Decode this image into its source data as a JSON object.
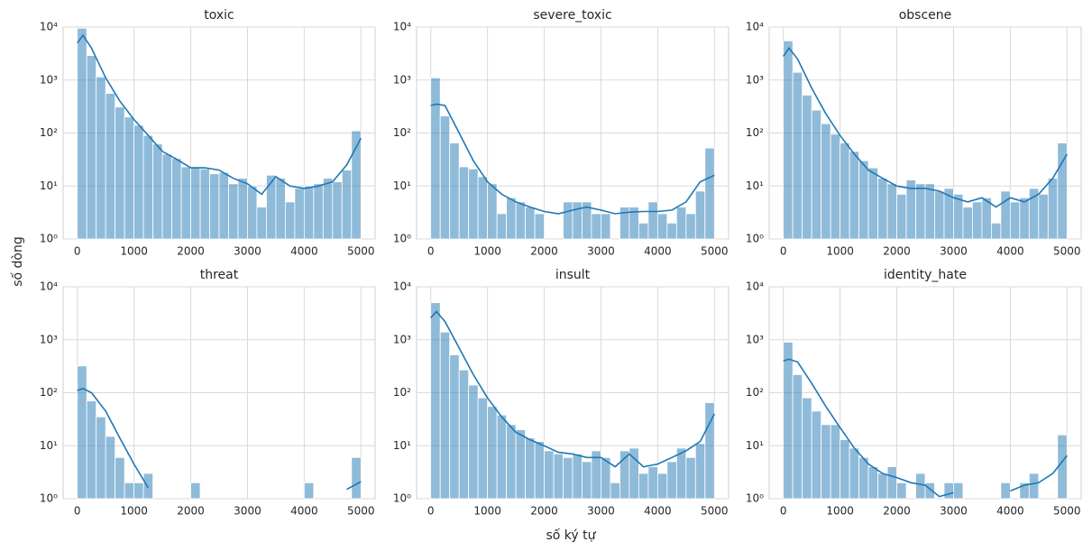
{
  "xlabel": "số ký tự",
  "ylabel": "số dòng",
  "chart_data": [
    {
      "type": "histogram",
      "title": "toxic",
      "color": "#1f77b4",
      "log_y": true,
      "grid": true,
      "bins": [
        0,
        166.7,
        333.3,
        500,
        666.7,
        833.3,
        1000,
        1166.7,
        1333.3,
        1500,
        1666.7,
        1833.3,
        2000,
        2166.7,
        2333.3,
        2500,
        2666.7,
        2833.3,
        3000,
        3166.7,
        3333.3,
        3500,
        3666.7,
        3833.3,
        4000,
        4166.7,
        4333.3,
        4500,
        4666.7,
        4833.3,
        5000
      ],
      "counts": [
        9500,
        2900,
        1150,
        560,
        310,
        200,
        140,
        90,
        62,
        40,
        33,
        23,
        22,
        21,
        17,
        18,
        11,
        14,
        10,
        4,
        16,
        14,
        5,
        9,
        10,
        11,
        14,
        12,
        20,
        110
      ],
      "kde": {
        "x": [
          0,
          100,
          250,
          500,
          750,
          1000,
          1250,
          1500,
          1750,
          2000,
          2250,
          2500,
          2750,
          3000,
          3250,
          3500,
          3750,
          4000,
          4250,
          4500,
          4750,
          5000
        ],
        "values": [
          5000,
          7000,
          4000,
          1100,
          400,
          180,
          90,
          45,
          32,
          22,
          22,
          20,
          14,
          11,
          7,
          15,
          10,
          9,
          10,
          12,
          25,
          80
        ]
      },
      "xlim": [
        -250,
        5250
      ],
      "xticks": [
        0,
        1000,
        2000,
        3000,
        4000,
        5000
      ],
      "ylim": [
        1,
        10000
      ],
      "yticks": [
        {
          "value": 1,
          "label": "10⁰"
        },
        {
          "value": 10,
          "label": "10¹"
        },
        {
          "value": 100,
          "label": "10²"
        },
        {
          "value": 1000,
          "label": "10³"
        },
        {
          "value": 10000,
          "label": "10⁴"
        }
      ]
    },
    {
      "type": "histogram",
      "title": "severe_toxic",
      "color": "#1f77b4",
      "log_y": true,
      "grid": true,
      "bins": [
        0,
        166.7,
        333.3,
        500,
        666.7,
        833.3,
        1000,
        1166.7,
        1333.3,
        1500,
        1666.7,
        1833.3,
        2000,
        2166.7,
        2333.3,
        2500,
        2666.7,
        2833.3,
        3000,
        3166.7,
        3333.3,
        3500,
        3666.7,
        3833.3,
        4000,
        4166.7,
        4333.3,
        4500,
        4666.7,
        4833.3,
        5000
      ],
      "counts": [
        1100,
        210,
        65,
        23,
        21,
        15,
        11,
        3,
        6,
        5,
        4,
        3,
        0,
        0,
        5,
        5,
        5,
        3,
        3,
        0,
        4,
        4,
        2,
        5,
        3,
        2,
        4,
        3,
        8,
        52
      ],
      "kde": {
        "x": [
          0,
          100,
          250,
          500,
          750,
          1000,
          1250,
          1500,
          1750,
          2000,
          2250,
          2500,
          2750,
          3000,
          3250,
          3500,
          3750,
          4000,
          4250,
          4500,
          4750,
          5000
        ],
        "values": [
          330,
          350,
          330,
          100,
          30,
          12,
          7,
          5,
          4,
          3.3,
          3,
          3.5,
          4,
          3.5,
          3,
          3.2,
          3.3,
          3.3,
          3.5,
          5,
          12,
          16
        ]
      },
      "xlim": [
        -250,
        5250
      ],
      "xticks": [
        0,
        1000,
        2000,
        3000,
        4000,
        5000
      ],
      "ylim": [
        1,
        10000
      ],
      "yticks": [
        {
          "value": 1,
          "label": "10⁰"
        },
        {
          "value": 10,
          "label": "10¹"
        },
        {
          "value": 100,
          "label": "10²"
        },
        {
          "value": 1000,
          "label": "10³"
        },
        {
          "value": 10000,
          "label": "10⁴"
        }
      ]
    },
    {
      "type": "histogram",
      "title": "obscene",
      "color": "#1f77b4",
      "log_y": true,
      "grid": true,
      "bins": [
        0,
        166.7,
        333.3,
        500,
        666.7,
        833.3,
        1000,
        1166.7,
        1333.3,
        1500,
        1666.7,
        1833.3,
        2000,
        2166.7,
        2333.3,
        2500,
        2666.7,
        2833.3,
        3000,
        3166.7,
        3333.3,
        3500,
        3666.7,
        3833.3,
        4000,
        4166.7,
        4333.3,
        4500,
        4666.7,
        4833.3,
        5000
      ],
      "counts": [
        5500,
        1400,
        520,
        270,
        150,
        95,
        65,
        45,
        30,
        22,
        14,
        11,
        7,
        13,
        11,
        11,
        8,
        9,
        7,
        4,
        5,
        6,
        2,
        8,
        5,
        6,
        9,
        7,
        14,
        65
      ],
      "kde": {
        "x": [
          0,
          100,
          250,
          500,
          750,
          1000,
          1250,
          1500,
          1750,
          2000,
          2250,
          2500,
          2750,
          3000,
          3250,
          3500,
          3750,
          4000,
          4250,
          4500,
          4750,
          5000
        ],
        "values": [
          2800,
          4000,
          2500,
          700,
          230,
          90,
          40,
          20,
          14,
          10,
          9,
          9,
          8,
          6,
          5,
          6,
          4,
          6,
          5,
          7,
          14,
          40
        ]
      },
      "xlim": [
        -250,
        5250
      ],
      "xticks": [
        0,
        1000,
        2000,
        3000,
        4000,
        5000
      ],
      "ylim": [
        1,
        10000
      ],
      "yticks": [
        {
          "value": 1,
          "label": "10⁰"
        },
        {
          "value": 10,
          "label": "10¹"
        },
        {
          "value": 100,
          "label": "10²"
        },
        {
          "value": 1000,
          "label": "10³"
        },
        {
          "value": 10000,
          "label": "10⁴"
        }
      ]
    },
    {
      "type": "histogram",
      "title": "threat",
      "color": "#1f77b4",
      "log_y": true,
      "grid": true,
      "bins": [
        0,
        166.7,
        333.3,
        500,
        666.7,
        833.3,
        1000,
        1166.7,
        1333.3,
        1500,
        1666.7,
        1833.3,
        2000,
        2166.7,
        2333.3,
        2500,
        2666.7,
        2833.3,
        3000,
        3166.7,
        3333.3,
        3500,
        3666.7,
        3833.3,
        4000,
        4166.7,
        4333.3,
        4500,
        4666.7,
        4833.3,
        5000
      ],
      "counts": [
        320,
        70,
        35,
        15,
        6,
        2,
        2,
        3,
        0,
        0,
        0,
        0,
        2,
        0,
        0,
        0,
        0,
        0,
        0,
        0,
        0,
        0,
        0,
        0,
        2,
        0,
        0,
        0,
        0,
        6
      ],
      "kde": {
        "x": [
          0,
          100,
          250,
          500,
          750,
          1000,
          1250,
          1500,
          1750,
          2000,
          2250,
          2500,
          2750,
          3000,
          3250,
          3500,
          3750,
          4000,
          4250,
          4500,
          4750,
          5000
        ],
        "values": [
          110,
          120,
          100,
          45,
          14,
          4.5,
          1.6,
          null,
          null,
          null,
          null,
          null,
          null,
          null,
          null,
          null,
          null,
          null,
          null,
          null,
          1.5,
          2.1
        ]
      },
      "xlim": [
        -250,
        5250
      ],
      "xticks": [
        0,
        1000,
        2000,
        3000,
        4000,
        5000
      ],
      "ylim": [
        1,
        10000
      ],
      "yticks": [
        {
          "value": 1,
          "label": "10⁰"
        },
        {
          "value": 10,
          "label": "10¹"
        },
        {
          "value": 100,
          "label": "10²"
        },
        {
          "value": 1000,
          "label": "10³"
        },
        {
          "value": 10000,
          "label": "10⁴"
        }
      ]
    },
    {
      "type": "histogram",
      "title": "insult",
      "color": "#1f77b4",
      "log_y": true,
      "grid": true,
      "bins": [
        0,
        166.7,
        333.3,
        500,
        666.7,
        833.3,
        1000,
        1166.7,
        1333.3,
        1500,
        1666.7,
        1833.3,
        2000,
        2166.7,
        2333.3,
        2500,
        2666.7,
        2833.3,
        3000,
        3166.7,
        3333.3,
        3500,
        3666.7,
        3833.3,
        4000,
        4166.7,
        4333.3,
        4500,
        4666.7,
        4833.3,
        5000
      ],
      "counts": [
        5000,
        1400,
        520,
        270,
        140,
        80,
        55,
        38,
        25,
        20,
        14,
        12,
        8,
        7,
        6,
        7,
        5,
        8,
        6,
        2,
        8,
        9,
        3,
        4,
        3,
        5,
        9,
        6,
        11,
        65
      ],
      "kde": {
        "x": [
          0,
          100,
          250,
          500,
          750,
          1000,
          1250,
          1500,
          1750,
          2000,
          2250,
          2500,
          2750,
          3000,
          3250,
          3500,
          3750,
          4000,
          4250,
          4500,
          4750,
          5000
        ],
        "values": [
          2600,
          3400,
          2200,
          700,
          220,
          80,
          35,
          18,
          13,
          10,
          7.5,
          7,
          6,
          6,
          4,
          7,
          4,
          4.5,
          6,
          8,
          12,
          40
        ]
      },
      "xlim": [
        -250,
        5250
      ],
      "xticks": [
        0,
        1000,
        2000,
        3000,
        4000,
        5000
      ],
      "ylim": [
        1,
        10000
      ],
      "yticks": [
        {
          "value": 1,
          "label": "10⁰"
        },
        {
          "value": 10,
          "label": "10¹"
        },
        {
          "value": 100,
          "label": "10²"
        },
        {
          "value": 1000,
          "label": "10³"
        },
        {
          "value": 10000,
          "label": "10⁴"
        }
      ]
    },
    {
      "type": "histogram",
      "title": "identity_hate",
      "color": "#1f77b4",
      "log_y": true,
      "grid": true,
      "bins": [
        0,
        166.7,
        333.3,
        500,
        666.7,
        833.3,
        1000,
        1166.7,
        1333.3,
        1500,
        1666.7,
        1833.3,
        2000,
        2166.7,
        2333.3,
        2500,
        2666.7,
        2833.3,
        3000,
        3166.7,
        3333.3,
        3500,
        3666.7,
        3833.3,
        4000,
        4166.7,
        4333.3,
        4500,
        4666.7,
        4833.3,
        5000
      ],
      "counts": [
        900,
        220,
        80,
        45,
        25,
        25,
        13,
        9,
        6,
        4,
        3,
        4,
        2,
        0,
        3,
        2,
        0,
        2,
        2,
        0,
        0,
        0,
        0,
        2,
        0,
        2,
        3,
        0,
        0,
        16
      ],
      "kde": {
        "x": [
          0,
          100,
          250,
          500,
          750,
          1000,
          1250,
          1500,
          1750,
          2000,
          2250,
          2500,
          2750,
          3000,
          3250,
          3500,
          3750,
          4000,
          4250,
          4500,
          4750,
          5000
        ],
        "values": [
          400,
          430,
          380,
          150,
          55,
          22,
          9,
          4.5,
          3,
          2.5,
          2,
          1.8,
          1.1,
          1.3,
          null,
          null,
          null,
          1.4,
          1.8,
          2,
          3,
          6.5
        ]
      },
      "xlim": [
        -250,
        5250
      ],
      "xticks": [
        0,
        1000,
        2000,
        3000,
        4000,
        5000
      ],
      "ylim": [
        1,
        10000
      ],
      "yticks": [
        {
          "value": 1,
          "label": "10⁰"
        },
        {
          "value": 10,
          "label": "10¹"
        },
        {
          "value": 100,
          "label": "10²"
        },
        {
          "value": 1000,
          "label": "10³"
        },
        {
          "value": 10000,
          "label": "10⁴"
        }
      ]
    }
  ]
}
